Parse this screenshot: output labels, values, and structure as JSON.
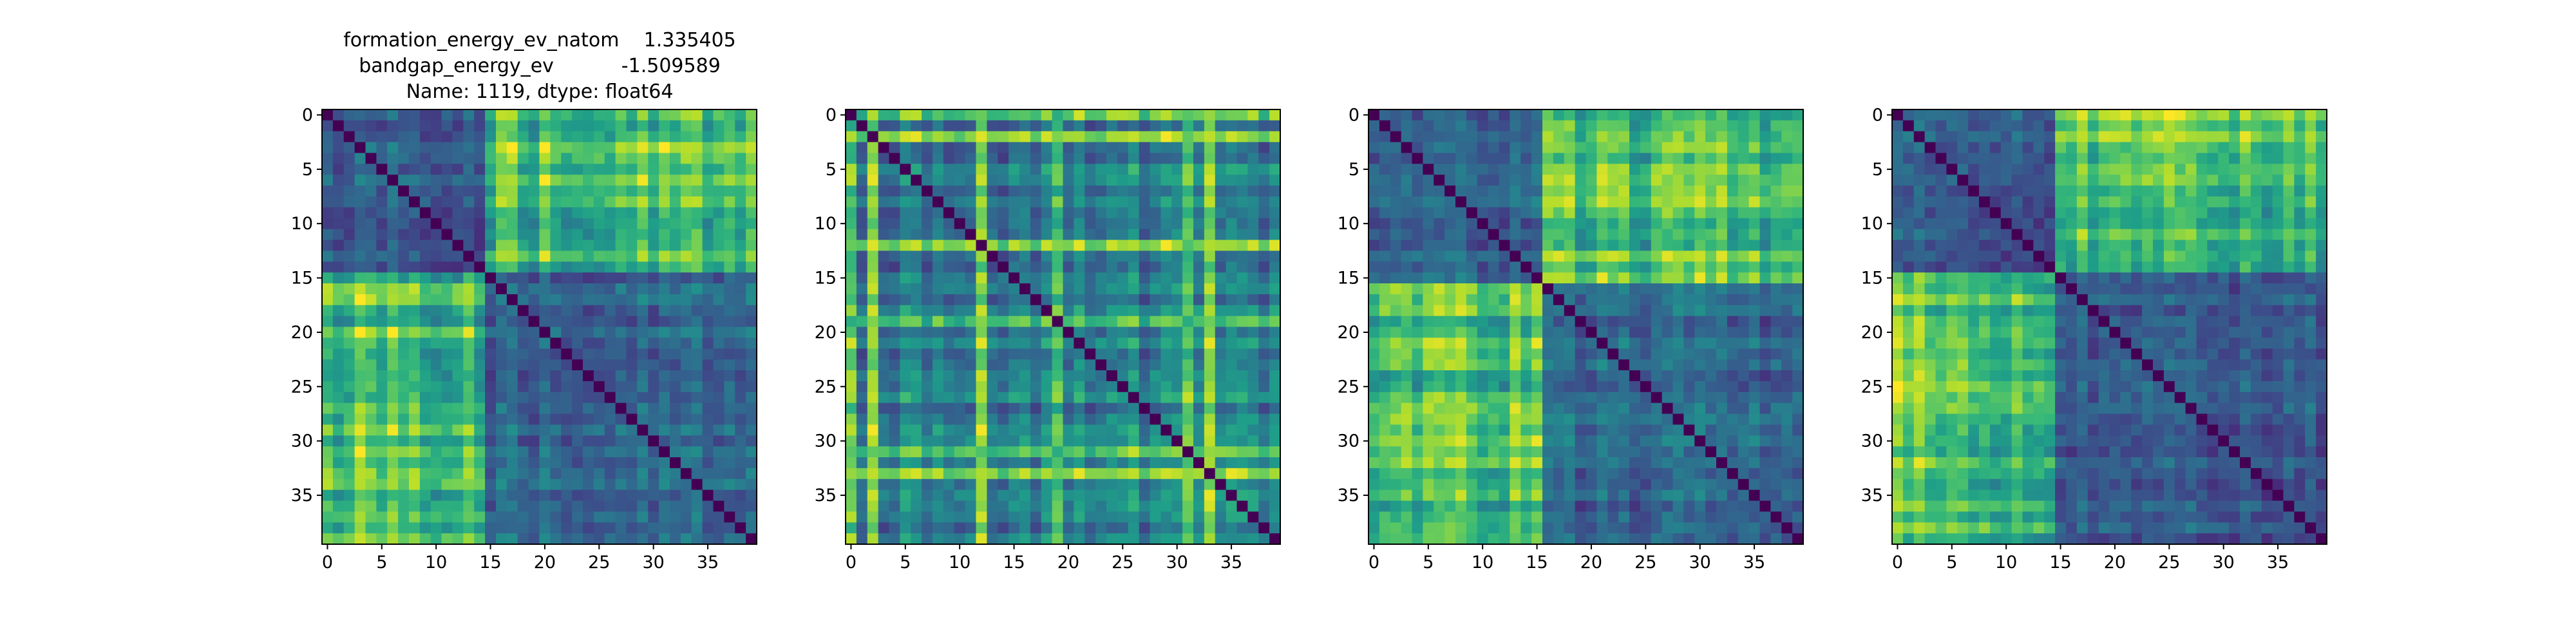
{
  "figure": {
    "title_lines": [
      "formation_energy_ev_natom    1.335405",
      "bandgap_energy_ev           -1.509589",
      "Name: 1119, dtype: float64"
    ]
  },
  "colormap": {
    "name": "viridis",
    "stops": [
      "#440154",
      "#482878",
      "#3e4989",
      "#31688e",
      "#26828e",
      "#1f9e89",
      "#35b779",
      "#6ece58",
      "#b5de2b",
      "#fde725"
    ]
  },
  "chart_data": [
    {
      "type": "heatmap",
      "title": "",
      "rows": 40,
      "cols": 40,
      "xticks": [
        0,
        5,
        10,
        15,
        20,
        25,
        30,
        35
      ],
      "yticks": [
        0,
        5,
        10,
        15,
        20,
        25,
        30,
        35
      ],
      "xlim": [
        -0.5,
        39.5
      ],
      "ylim": [
        39.5,
        -0.5
      ],
      "block_split": 15,
      "diagonal_value": 0.0,
      "within_block_mean": 0.32,
      "cross_block_mean": 0.72,
      "peak_value": 1.0
    },
    {
      "type": "heatmap",
      "title": "",
      "rows": 40,
      "cols": 40,
      "xticks": [
        0,
        5,
        10,
        15,
        20,
        25,
        30,
        35
      ],
      "yticks": [
        0,
        5,
        10,
        15,
        20,
        25,
        30,
        35
      ],
      "xlim": [
        -0.5,
        39.5
      ],
      "ylim": [
        39.5,
        -0.5
      ],
      "block_split": null,
      "highlight_indices": [
        0,
        2,
        12,
        19,
        31,
        33
      ],
      "diagonal_value": 0.0,
      "base_mean": 0.42,
      "highlight_mean": 0.78,
      "peak_value": 1.0
    },
    {
      "type": "heatmap",
      "title": "",
      "rows": 40,
      "cols": 40,
      "xticks": [
        0,
        5,
        10,
        15,
        20,
        25,
        30,
        35
      ],
      "yticks": [
        0,
        5,
        10,
        15,
        20,
        25,
        30,
        35
      ],
      "xlim": [
        -0.5,
        39.5
      ],
      "ylim": [
        39.5,
        -0.5
      ],
      "block_split": 16,
      "diagonal_value": 0.0,
      "within_block_mean": 0.33,
      "cross_block_mean": 0.7,
      "peak_value": 1.0
    },
    {
      "type": "heatmap",
      "title": "",
      "rows": 40,
      "cols": 40,
      "xticks": [
        0,
        5,
        10,
        15,
        20,
        25,
        30,
        35
      ],
      "yticks": [
        0,
        5,
        10,
        15,
        20,
        25,
        30,
        35
      ],
      "xlim": [
        -0.5,
        39.5
      ],
      "ylim": [
        39.5,
        -0.5
      ],
      "block_split": 15,
      "diagonal_value": 0.0,
      "within_block_mean": 0.3,
      "cross_block_mean": 0.74,
      "peak_value": 1.0
    }
  ]
}
